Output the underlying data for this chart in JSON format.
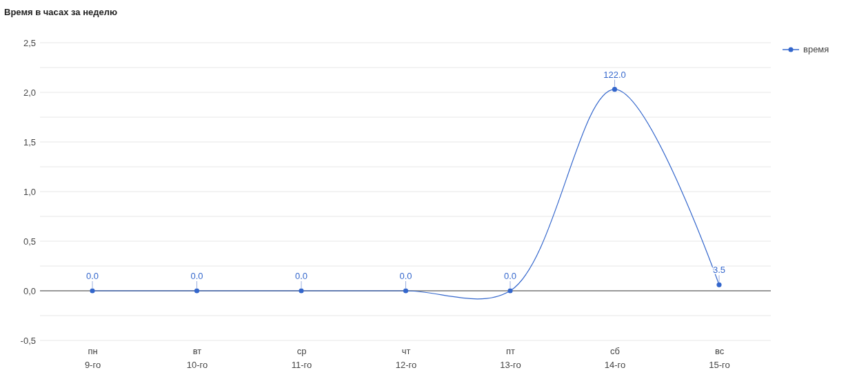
{
  "chart_data": {
    "type": "line",
    "title": "Время в часах за неделю",
    "categories": [
      "пн\n9-го",
      "вт\n10-го",
      "ср\n11-го",
      "чт\n12-го",
      "пт\n13-го",
      "сб\n14-го",
      "вс\n15-го"
    ],
    "series": [
      {
        "name": "время",
        "color": "#3366cc",
        "values": [
          0,
          0,
          0,
          0,
          0,
          2.03,
          0.06
        ]
      }
    ],
    "annotations": [
      {
        "text": "0.0",
        "x": "пн\n9-го",
        "y": 0
      },
      {
        "text": "0.0",
        "x": "вт\n10-го",
        "y": 0
      },
      {
        "text": "0.0",
        "x": "ср\n11-го",
        "y": 0
      },
      {
        "text": "0.0",
        "x": "чт\n12-го",
        "y": 0
      },
      {
        "text": "0.0",
        "x": "пт\n13-го",
        "y": 0
      },
      {
        "text": "122.0",
        "x": "сб\n14-го",
        "y": 2.03
      },
      {
        "text": "3.5",
        "x": "вс\n15-го",
        "y": 0.06
      }
    ],
    "ylim": [
      -0.5,
      2.5
    ],
    "yticks": [
      {
        "value": -0.5,
        "label": "-0,5"
      },
      {
        "value": -0.25,
        "label": null
      },
      {
        "value": 0,
        "label": "0,0"
      },
      {
        "value": 0.25,
        "label": null
      },
      {
        "value": 0.5,
        "label": "0,5"
      },
      {
        "value": 0.75,
        "label": null
      },
      {
        "value": 1,
        "label": "1,0"
      },
      {
        "value": 1.25,
        "label": null
      },
      {
        "value": 1.5,
        "label": "1,5"
      },
      {
        "value": 1.75,
        "label": null
      },
      {
        "value": 2,
        "label": "2,0"
      },
      {
        "value": 2.25,
        "label": null
      },
      {
        "value": 2.5,
        "label": "2,5"
      }
    ],
    "grid": "y",
    "legend": "top right",
    "marker": "circle",
    "line_style": "solid"
  }
}
